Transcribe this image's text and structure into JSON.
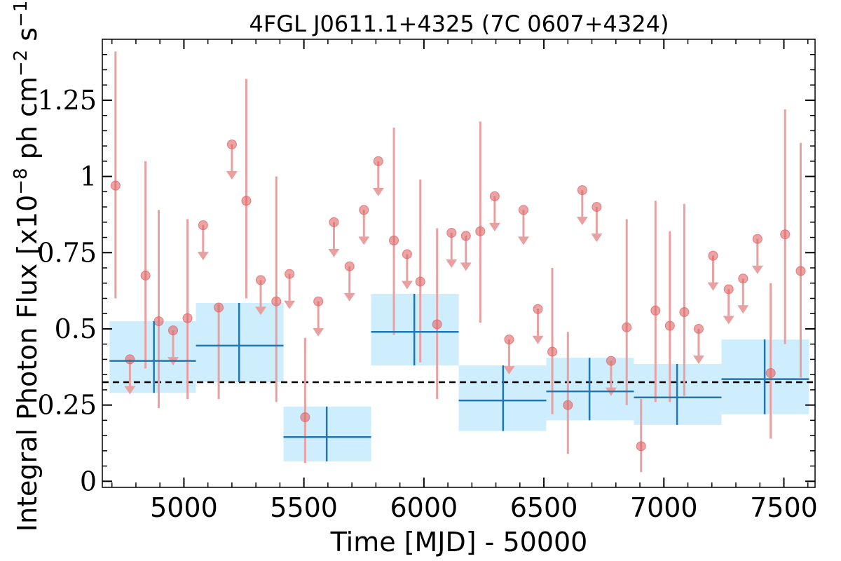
{
  "chart_data": {
    "type": "scatter",
    "title": "4FGL J0611.1+4325 (7C 0607+4324)",
    "xlabel": "Time [MJD] - 50000",
    "ylabel": "Integral Photon Flux [x10$^{-8}$ ph cm$^{-2}$ s$^{-1}$]",
    "ylabel_base": "Integral Photon Flux [x10",
    "ylabel_exp1": "−8",
    "ylabel_mid": " ph cm",
    "ylabel_exp2": "−2",
    "ylabel_mid2": " s",
    "ylabel_exp3": "−1",
    "ylabel_end": "]",
    "xlim": [
      4660,
      7630
    ],
    "ylim": [
      -0.02,
      1.45
    ],
    "xticks": [
      5000,
      5500,
      6000,
      6500,
      7000,
      7500
    ],
    "xtick_labels": [
      "5000",
      "5500",
      "6000",
      "6500",
      "7000",
      "7500"
    ],
    "yticks": [
      0,
      0.25,
      0.5,
      0.75,
      1,
      1.25
    ],
    "ytick_labels": [
      "0",
      "0.25",
      "0.5",
      "0.75",
      "1",
      "1.25"
    ],
    "mean_flux": 0.325,
    "colors": {
      "points": "#e06666",
      "errorbars": "#e8a0a0",
      "bins_fill": "#cfeefd",
      "bins_line": "#1f77b4",
      "mean_line": "#000000"
    },
    "detections": [
      {
        "x": 4715,
        "y": 0.97,
        "ylo": 0.6,
        "yhi": 1.41
      },
      {
        "x": 4840,
        "y": 0.675,
        "ylo": 0.37,
        "yhi": 1.05
      },
      {
        "x": 4895,
        "y": 0.525,
        "ylo": 0.24,
        "yhi": 0.89
      },
      {
        "x": 5015,
        "y": 0.535,
        "ylo": 0.27,
        "yhi": 0.86
      },
      {
        "x": 5145,
        "y": 0.57,
        "ylo": 0.27,
        "yhi": 0.58
      },
      {
        "x": 5260,
        "y": 0.92,
        "ylo": 0.6,
        "yhi": 1.32
      },
      {
        "x": 5385,
        "y": 0.59,
        "ylo": 0.26,
        "yhi": 1.0
      },
      {
        "x": 5505,
        "y": 0.21,
        "ylo": 0.06,
        "yhi": 0.47
      },
      {
        "x": 5875,
        "y": 0.79,
        "ylo": 0.48,
        "yhi": 1.16
      },
      {
        "x": 5985,
        "y": 0.655,
        "ylo": 0.39,
        "yhi": 0.99
      },
      {
        "x": 6055,
        "y": 0.515,
        "ylo": 0.27,
        "yhi": 0.83
      },
      {
        "x": 6235,
        "y": 0.82,
        "ylo": 0.52,
        "yhi": 1.18
      },
      {
        "x": 6535,
        "y": 0.425,
        "ylo": 0.22,
        "yhi": 0.7
      },
      {
        "x": 6600,
        "y": 0.25,
        "ylo": 0.09,
        "yhi": 0.49
      },
      {
        "x": 6845,
        "y": 0.505,
        "ylo": 0.25,
        "yhi": 0.86
      },
      {
        "x": 6905,
        "y": 0.115,
        "ylo": 0.03,
        "yhi": 0.27
      },
      {
        "x": 6965,
        "y": 0.56,
        "ylo": 0.26,
        "yhi": 0.92
      },
      {
        "x": 7025,
        "y": 0.51,
        "ylo": 0.26,
        "yhi": 0.82
      },
      {
        "x": 7085,
        "y": 0.555,
        "ylo": 0.28,
        "yhi": 0.91
      },
      {
        "x": 7445,
        "y": 0.355,
        "ylo": 0.14,
        "yhi": 0.65
      },
      {
        "x": 7505,
        "y": 0.81,
        "ylo": 0.45,
        "yhi": 1.22
      },
      {
        "x": 7570,
        "y": 0.69,
        "ylo": 0.34,
        "yhi": 1.11
      }
    ],
    "upper_limits": [
      {
        "x": 4775,
        "y": 0.4
      },
      {
        "x": 4955,
        "y": 0.495
      },
      {
        "x": 5080,
        "y": 0.84
      },
      {
        "x": 5200,
        "y": 1.105
      },
      {
        "x": 5320,
        "y": 0.66
      },
      {
        "x": 5440,
        "y": 0.68
      },
      {
        "x": 5560,
        "y": 0.59
      },
      {
        "x": 5625,
        "y": 0.85
      },
      {
        "x": 5690,
        "y": 0.705
      },
      {
        "x": 5750,
        "y": 0.89
      },
      {
        "x": 5810,
        "y": 1.05
      },
      {
        "x": 5930,
        "y": 0.745
      },
      {
        "x": 6115,
        "y": 0.815
      },
      {
        "x": 6175,
        "y": 0.805
      },
      {
        "x": 6295,
        "y": 0.935
      },
      {
        "x": 6355,
        "y": 0.465
      },
      {
        "x": 6415,
        "y": 0.89
      },
      {
        "x": 6475,
        "y": 0.565
      },
      {
        "x": 6660,
        "y": 0.955
      },
      {
        "x": 6720,
        "y": 0.9
      },
      {
        "x": 6780,
        "y": 0.395
      },
      {
        "x": 7145,
        "y": 0.5
      },
      {
        "x": 7205,
        "y": 0.74
      },
      {
        "x": 7270,
        "y": 0.63
      },
      {
        "x": 7330,
        "y": 0.665
      },
      {
        "x": 7390,
        "y": 0.795
      }
    ],
    "bins": [
      {
        "x0": 4690,
        "x1": 5050,
        "xc": 4875,
        "y": 0.395,
        "ylo": 0.29,
        "yhi": 0.525
      },
      {
        "x0": 5050,
        "x1": 5415,
        "xc": 5230,
        "y": 0.445,
        "ylo": 0.325,
        "yhi": 0.585
      },
      {
        "x0": 5415,
        "x1": 5780,
        "xc": 5595,
        "y": 0.145,
        "ylo": 0.065,
        "yhi": 0.245
      },
      {
        "x0": 5780,
        "x1": 6145,
        "xc": 5960,
        "y": 0.49,
        "ylo": 0.38,
        "yhi": 0.615
      },
      {
        "x0": 6145,
        "x1": 6510,
        "xc": 6330,
        "y": 0.265,
        "ylo": 0.165,
        "yhi": 0.38
      },
      {
        "x0": 6510,
        "x1": 6875,
        "xc": 6690,
        "y": 0.295,
        "ylo": 0.2,
        "yhi": 0.405
      },
      {
        "x0": 6875,
        "x1": 7240,
        "xc": 7055,
        "y": 0.275,
        "ylo": 0.185,
        "yhi": 0.385
      },
      {
        "x0": 7240,
        "x1": 7605,
        "xc": 7420,
        "y": 0.335,
        "ylo": 0.22,
        "yhi": 0.465
      }
    ]
  }
}
